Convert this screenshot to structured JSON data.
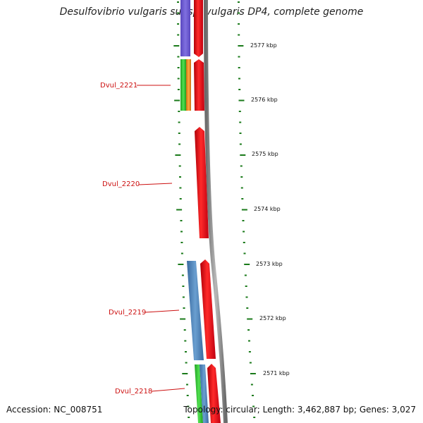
{
  "header": {
    "title": "Desulfovibrio vulgaris subsp. vulgaris DP4, complete genome"
  },
  "footer": {
    "accession": "Accession: NC_008751",
    "summary": "Topology: circular; Length: 3,462,887 bp; Genes: 3,027"
  },
  "ruler": [
    "2577 kbp",
    "2576 kbp",
    "2575 kbp",
    "2574 kbp",
    "2573 kbp",
    "2572 kbp",
    "2571 kbp"
  ],
  "genes": [
    "Dvul_2221",
    "Dvul_2220",
    "Dvul_2219",
    "Dvul_2218"
  ],
  "colors": {
    "gene_red": "#e8101a",
    "purple": "#7060d0",
    "green": "#30c030",
    "orange": "#f09020",
    "steel_blue": "#4a7fb8",
    "backbone": "#888888",
    "tick": "#1a7a1a",
    "label": "#cc1010"
  }
}
